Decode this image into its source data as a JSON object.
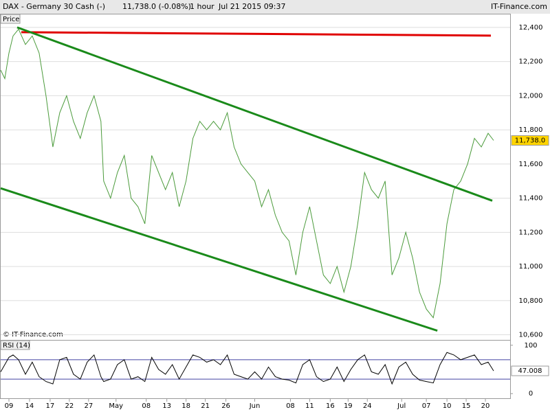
{
  "header": {
    "symbol": "DAX - Germany 30 Cash (-)",
    "quote": "11,738.0 (-0.08%)",
    "interval": "1 hour",
    "datetime": "Jul 21 2015 09:37",
    "brand": "IT-Finance.com"
  },
  "chart_data": [
    {
      "type": "line",
      "title": "Price",
      "watermark": "© IT-Finance.com",
      "x": [
        0,
        3,
        6,
        9,
        13,
        18,
        23,
        28,
        33,
        38,
        43,
        48,
        53,
        58,
        63,
        68,
        73,
        75,
        80,
        85,
        90,
        95,
        100,
        105,
        110,
        115,
        120,
        125,
        130,
        135,
        140,
        145,
        150,
        155,
        160,
        165,
        170,
        175,
        180,
        185,
        190,
        195,
        200,
        205,
        210,
        215,
        220,
        225,
        230,
        235,
        240,
        245,
        250,
        255,
        260,
        265,
        270,
        275,
        280,
        285,
        290,
        295,
        300,
        305,
        310,
        315,
        320,
        325,
        330,
        335,
        340,
        345,
        350,
        355,
        359
      ],
      "series": [
        {
          "name": "DAX",
          "color": "#4a9a3a",
          "values": [
            12150,
            12100,
            12250,
            12350,
            12390,
            12300,
            12350,
            12250,
            12000,
            11700,
            11900,
            12000,
            11850,
            11750,
            11900,
            12000,
            11850,
            11500,
            11400,
            11550,
            11650,
            11400,
            11350,
            11250,
            11650,
            11550,
            11450,
            11550,
            11350,
            11500,
            11750,
            11850,
            11800,
            11850,
            11800,
            11900,
            11700,
            11600,
            11550,
            11500,
            11350,
            11450,
            11300,
            11200,
            11150,
            10950,
            11200,
            11350,
            11150,
            10950,
            10900,
            11000,
            10850,
            11000,
            11250,
            11550,
            11450,
            11400,
            11500,
            10950,
            11050,
            11200,
            11050,
            10850,
            10750,
            10700,
            10900,
            11250,
            11450,
            11500,
            11600,
            11750,
            11700,
            11780,
            11738
          ]
        }
      ],
      "trendlines": [
        {
          "color": "#e00000",
          "x": [
            15,
            357
          ],
          "values": [
            12372,
            12352
          ]
        },
        {
          "color": "#1a8a1a",
          "x": [
            12,
            358
          ],
          "values": [
            12400,
            11385
          ]
        },
        {
          "color": "#1a8a1a",
          "x": [
            0,
            318
          ],
          "values": [
            11458,
            10624
          ]
        }
      ],
      "last_value": {
        "value": 11738,
        "label": "11,738.0"
      },
      "xlim": [
        0,
        371
      ],
      "xticks": [
        {
          "value": 6,
          "label": "09"
        },
        {
          "value": 21,
          "label": "14"
        },
        {
          "value": 36,
          "label": "17"
        },
        {
          "value": 50,
          "label": "22"
        },
        {
          "value": 64,
          "label": "27"
        },
        {
          "value": 84,
          "label": "May"
        },
        {
          "value": 106,
          "label": "08"
        },
        {
          "value": 121,
          "label": "13"
        },
        {
          "value": 135,
          "label": "18"
        },
        {
          "value": 149,
          "label": "21"
        },
        {
          "value": 164,
          "label": "26"
        },
        {
          "value": 185,
          "label": "Jun"
        },
        {
          "value": 211,
          "label": "08"
        },
        {
          "value": 225,
          "label": "11"
        },
        {
          "value": 240,
          "label": "16"
        },
        {
          "value": 253,
          "label": "19"
        },
        {
          "value": 267,
          "label": "24"
        },
        {
          "value": 292,
          "label": "Jul"
        },
        {
          "value": 310,
          "label": "07"
        },
        {
          "value": 325,
          "label": "10"
        },
        {
          "value": 339,
          "label": "15"
        },
        {
          "value": 353,
          "label": "20"
        }
      ],
      "ylim": [
        10570,
        12480
      ],
      "yticks": [
        {
          "value": 10600,
          "label": "10,600"
        },
        {
          "value": 10800,
          "label": "10,800"
        },
        {
          "value": 11000,
          "label": "11,000"
        },
        {
          "value": 11200,
          "label": "11,200"
        },
        {
          "value": 11400,
          "label": "11,400"
        },
        {
          "value": 11600,
          "label": "11,600"
        },
        {
          "value": 11800,
          "label": "11,800"
        },
        {
          "value": 12000,
          "label": "12,000"
        },
        {
          "value": 12200,
          "label": "12,200"
        },
        {
          "value": 12400,
          "label": "12,400"
        }
      ],
      "grid": true
    },
    {
      "type": "line",
      "title": "RSI (14)",
      "x": [
        0,
        3,
        6,
        9,
        13,
        18,
        23,
        28,
        33,
        38,
        43,
        48,
        53,
        58,
        63,
        68,
        73,
        75,
        80,
        85,
        90,
        95,
        100,
        105,
        110,
        115,
        120,
        125,
        130,
        135,
        140,
        145,
        150,
        155,
        160,
        165,
        170,
        175,
        180,
        185,
        190,
        195,
        200,
        205,
        210,
        215,
        220,
        225,
        230,
        235,
        240,
        245,
        250,
        255,
        260,
        265,
        270,
        275,
        280,
        285,
        290,
        295,
        300,
        305,
        310,
        315,
        320,
        325,
        330,
        335,
        340,
        345,
        350,
        355,
        359
      ],
      "series": [
        {
          "name": "RSI",
          "color": "#000000",
          "values": [
            45,
            60,
            75,
            80,
            70,
            40,
            65,
            35,
            25,
            20,
            70,
            75,
            40,
            30,
            65,
            80,
            35,
            25,
            30,
            60,
            70,
            30,
            35,
            25,
            75,
            50,
            40,
            60,
            30,
            55,
            80,
            75,
            65,
            70,
            60,
            80,
            40,
            35,
            30,
            45,
            30,
            55,
            35,
            30,
            28,
            22,
            60,
            70,
            35,
            25,
            30,
            55,
            25,
            50,
            70,
            80,
            45,
            40,
            60,
            20,
            55,
            65,
            40,
            28,
            25,
            22,
            60,
            85,
            80,
            70,
            75,
            80,
            60,
            65,
            47.008
          ]
        }
      ],
      "last_value": {
        "value": 47.008,
        "label": "47.008"
      },
      "levels": [
        70,
        30
      ],
      "xlim": [
        0,
        371
      ],
      "ylim": [
        -11,
        111
      ],
      "yticks": [
        0,
        100
      ]
    }
  ]
}
